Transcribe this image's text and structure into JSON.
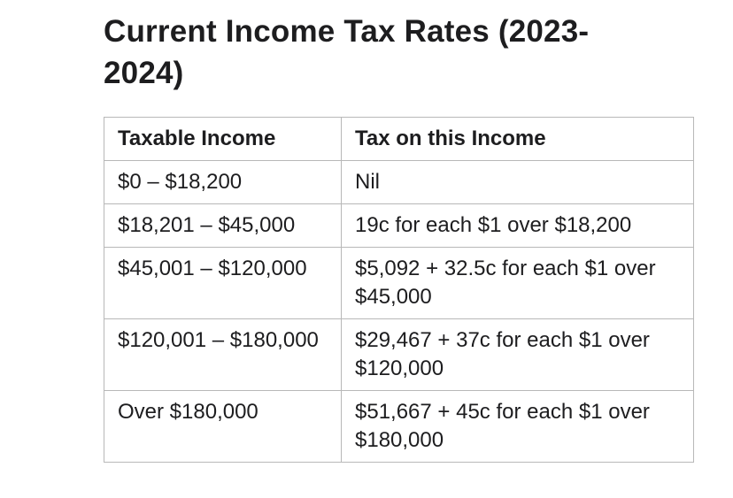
{
  "page": {
    "title": "Current Income Tax Rates (2023-2024)"
  },
  "tax_table": {
    "headers": [
      "Taxable Income",
      "Tax on this Income"
    ],
    "rows": [
      {
        "income": "$0 – $18,200",
        "tax": "Nil"
      },
      {
        "income": "$18,201 – $45,000",
        "tax": "19c for each $1 over $18,200"
      },
      {
        "income": "$45,001 – $120,000",
        "tax": "$5,092 + 32.5c for each $1 over $45,000"
      },
      {
        "income": "$120,001 – $180,000",
        "tax": "$29,467 + 37c for each $1 over $120,000"
      },
      {
        "income": "Over $180,000",
        "tax": "$51,667 + 45c for each $1 over $180,000"
      }
    ]
  },
  "colors": {
    "text": "#1d1d1f",
    "border": "#b8b8b8",
    "background": "#ffffff"
  }
}
